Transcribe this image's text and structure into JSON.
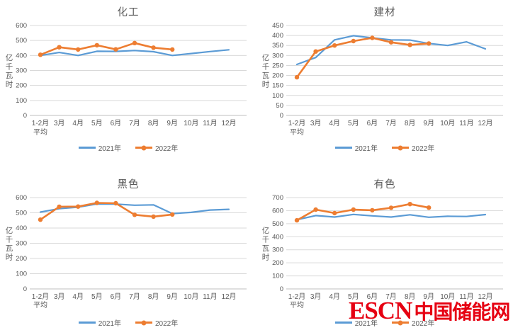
{
  "colors": {
    "series_2021": "#5B9BD5",
    "series_2022": "#ED7D31",
    "grid": "#D9D9D9",
    "axis_line": "#BFBFBF",
    "text": "#595959",
    "logo_red": "#E60012"
  },
  "watermark": {
    "text_en": "ESCN",
    "text_zh": "中国储能网"
  },
  "chart_data": [
    {
      "type": "line",
      "title": "化工",
      "ylabel": "亿千瓦时",
      "categories": [
        "1-2月平均",
        "3月",
        "4月",
        "5月",
        "6月",
        "7月",
        "8月",
        "9月",
        "10月",
        "11月",
        "12月"
      ],
      "ylim": [
        0,
        600
      ],
      "ytick_step": 100,
      "grid": true,
      "legend_position": "bottom",
      "series": [
        {
          "name": "2021年",
          "color": "#5B9BD5",
          "marker": "none",
          "values": [
            400,
            420,
            400,
            428,
            427,
            433,
            425,
            400,
            413,
            426,
            438
          ]
        },
        {
          "name": "2022年",
          "color": "#ED7D31",
          "marker": "circle",
          "values": [
            405,
            455,
            440,
            468,
            441,
            483,
            452,
            440
          ]
        }
      ]
    },
    {
      "type": "line",
      "title": "建材",
      "ylabel": "亿千瓦时",
      "categories": [
        "1-2月平均",
        "3月",
        "4月",
        "5月",
        "6月",
        "7月",
        "8月",
        "9月",
        "10月",
        "11月",
        "12月"
      ],
      "ylim": [
        0,
        450
      ],
      "ytick_step": 50,
      "grid": true,
      "legend_position": "bottom",
      "series": [
        {
          "name": "2021年",
          "color": "#5B9BD5",
          "marker": "none",
          "values": [
            255,
            290,
            378,
            399,
            388,
            378,
            377,
            360,
            350,
            368,
            333
          ]
        },
        {
          "name": "2022年",
          "color": "#ED7D31",
          "marker": "circle",
          "values": [
            191,
            320,
            350,
            372,
            388,
            366,
            353,
            360
          ]
        }
      ]
    },
    {
      "type": "line",
      "title": "黑色",
      "ylabel": "亿千瓦时",
      "categories": [
        "1-2月平均",
        "3月",
        "4月",
        "5月",
        "6月",
        "7月",
        "8月",
        "9月",
        "10月",
        "11月",
        "12月"
      ],
      "ylim": [
        0,
        600
      ],
      "ytick_step": 100,
      "grid": true,
      "legend_position": "bottom",
      "series": [
        {
          "name": "2021年",
          "color": "#5B9BD5",
          "marker": "none",
          "values": [
            505,
            527,
            537,
            558,
            557,
            550,
            552,
            495,
            503,
            518,
            523
          ]
        },
        {
          "name": "2022年",
          "color": "#ED7D31",
          "marker": "circle",
          "values": [
            455,
            540,
            541,
            565,
            563,
            487,
            475,
            489
          ]
        }
      ]
    },
    {
      "type": "line",
      "title": "有色",
      "ylabel": "亿千瓦时",
      "categories": [
        "1-2月平均",
        "3月",
        "4月",
        "5月",
        "6月",
        "7月",
        "8月",
        "9月",
        "10月",
        "11月",
        "12月"
      ],
      "ylim": [
        0,
        700
      ],
      "ytick_step": 100,
      "grid": true,
      "legend_position": "bottom",
      "series": [
        {
          "name": "2021年",
          "color": "#5B9BD5",
          "marker": "none",
          "values": [
            530,
            562,
            551,
            571,
            560,
            551,
            568,
            549,
            557,
            555,
            570
          ]
        },
        {
          "name": "2022年",
          "color": "#ED7D31",
          "marker": "circle",
          "values": [
            526,
            608,
            581,
            608,
            603,
            622,
            650,
            623
          ]
        }
      ]
    }
  ]
}
